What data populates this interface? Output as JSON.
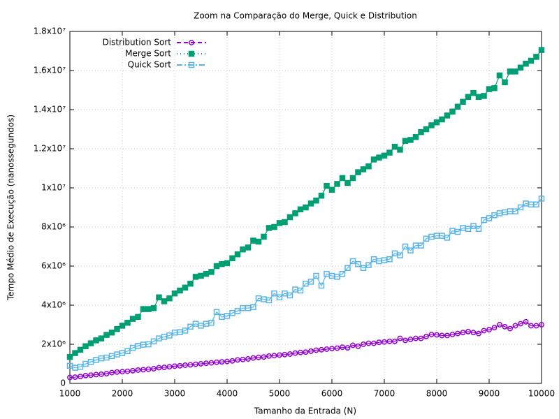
{
  "chart_data": {
    "type": "line",
    "title": "Zoom na Comparação do Merge, Quick e Distribution",
    "xlabel": "Tamanho da Entrada (N)",
    "ylabel": "Tempo Médio de Execução (nanossegundos)",
    "x": [
      1000,
      1100,
      1200,
      1300,
      1400,
      1500,
      1600,
      1700,
      1800,
      1900,
      2000,
      2100,
      2200,
      2300,
      2400,
      2500,
      2600,
      2700,
      2800,
      2900,
      3000,
      3100,
      3200,
      3300,
      3400,
      3500,
      3600,
      3700,
      3800,
      3900,
      4000,
      4100,
      4200,
      4300,
      4400,
      4500,
      4600,
      4700,
      4800,
      4900,
      5000,
      5100,
      5200,
      5300,
      5400,
      5500,
      5600,
      5700,
      5800,
      5900,
      6000,
      6100,
      6200,
      6300,
      6400,
      6500,
      6600,
      6700,
      6800,
      6900,
      7000,
      7100,
      7200,
      7300,
      7400,
      7500,
      7600,
      7700,
      7800,
      7900,
      8000,
      8100,
      8200,
      8300,
      8400,
      8500,
      8600,
      8700,
      8800,
      8900,
      9000,
      9100,
      9200,
      9300,
      9400,
      9500,
      9600,
      9700,
      9800,
      9900,
      10000
    ],
    "series": [
      {
        "name": "Distribution Sort",
        "color": "#9400d3",
        "marker": "circle",
        "dash": "6 4",
        "values": [
          300000.0,
          320000.0,
          350000.0,
          400000.0,
          420000.0,
          450000.0,
          470000.0,
          500000.0,
          550000.0,
          580000.0,
          600000.0,
          620000.0,
          650000.0,
          680000.0,
          700000.0,
          720000.0,
          750000.0,
          800000.0,
          820000.0,
          850000.0,
          880000.0,
          900000.0,
          930000.0,
          950000.0,
          980000.0,
          1000000.0,
          1030000.0,
          1050000.0,
          1080000.0,
          1100000.0,
          1120000.0,
          1150000.0,
          1200000.0,
          1220000.0,
          1250000.0,
          1300000.0,
          1330000.0,
          1350000.0,
          1400000.0,
          1420000.0,
          1450000.0,
          1470000.0,
          1500000.0,
          1550000.0,
          1580000.0,
          1600000.0,
          1650000.0,
          1700000.0,
          1720000.0,
          1750000.0,
          1780000.0,
          1800000.0,
          1850000.0,
          1820000.0,
          1950000.0,
          1900000.0,
          2000000.0,
          2050000.0,
          2050000.0,
          2100000.0,
          2120000.0,
          2150000.0,
          2150000.0,
          2300000.0,
          2200000.0,
          2250000.0,
          2300000.0,
          2300000.0,
          2400000.0,
          2500000.0,
          2480000.0,
          2450000.0,
          2450000.0,
          2500000.0,
          2550000.0,
          2600000.0,
          2650000.0,
          2600000.0,
          2550000.0,
          2700000.0,
          2750000.0,
          2850000.0,
          3000000.0,
          2900000.0,
          2800000.0,
          2950000.0,
          3050000.0,
          3150000.0,
          2950000.0,
          2950000.0,
          3000000.0
        ]
      },
      {
        "name": "Merge Sort",
        "color": "#009e73",
        "marker": "filled-square",
        "dash": "1 4",
        "values": [
          1350000.0,
          1550000.0,
          1720000.0,
          1900000.0,
          2050000.0,
          2200000.0,
          2300000.0,
          2480000.0,
          2600000.0,
          2780000.0,
          2950000.0,
          3100000.0,
          3300000.0,
          3400000.0,
          3800000.0,
          3800000.0,
          3850000.0,
          4400000.0,
          4200000.0,
          4350000.0,
          4600000.0,
          4750000.0,
          4900000.0,
          5100000.0,
          5450000.0,
          5500000.0,
          5600000.0,
          5700000.0,
          6000000.0,
          6100000.0,
          6150000.0,
          6400000.0,
          6600000.0,
          6850000.0,
          6950000.0,
          7300000.0,
          7250000.0,
          7500000.0,
          7950000.0,
          8000000.0,
          8200000.0,
          8250000.0,
          8500000.0,
          8700000.0,
          8900000.0,
          9000000.0,
          9200000.0,
          9350000.0,
          9600000.0,
          10100000.0,
          9900000.0,
          10200000.0,
          10500000.0,
          10250000.0,
          10500000.0,
          10800000.0,
          10950000.0,
          11100000.0,
          11450000.0,
          11550000.0,
          11650000.0,
          11800000.0,
          12100000.0,
          11950000.0,
          12400000.0,
          12450000.0,
          12600000.0,
          12850000.0,
          13000000.0,
          13200000.0,
          13350000.0,
          13500000.0,
          13700000.0,
          13900000.0,
          14150000.0,
          14400000.0,
          14650000.0,
          14850000.0,
          14650000.0,
          14700000.0,
          15050000.0,
          15100000.0,
          15750000.0,
          15400000.0,
          15950000.0,
          15950000.0,
          16150000.0,
          16350000.0,
          16500000.0,
          16700000.0,
          17050000.0
        ]
      },
      {
        "name": "Quick Sort",
        "color": "#56b4e9",
        "marker": "square",
        "dash": "8 3 2 3",
        "values": [
          900000.0,
          800000.0,
          850000.0,
          1000000.0,
          1100000.0,
          1200000.0,
          1280000.0,
          1320000.0,
          1400000.0,
          1480000.0,
          1550000.0,
          1650000.0,
          1820000.0,
          1920000.0,
          1980000.0,
          2000000.0,
          2150000.0,
          2300000.0,
          2380000.0,
          2450000.0,
          2600000.0,
          2620000.0,
          2700000.0,
          2900000.0,
          3050000.0,
          2950000.0,
          3050000.0,
          3100000.0,
          3650000.0,
          3400000.0,
          3450000.0,
          3600000.0,
          3700000.0,
          3850000.0,
          3850000.0,
          3900000.0,
          4350000.0,
          4300000.0,
          4250000.0,
          4600000.0,
          4400000.0,
          4600000.0,
          4500000.0,
          4800000.0,
          4750000.0,
          5100000.0,
          5200000.0,
          5500000.0,
          5000000.0,
          5600000.0,
          5500000.0,
          5450000.0,
          5600000.0,
          5900000.0,
          6250000.0,
          6100000.0,
          5900000.0,
          6050000.0,
          6350000.0,
          6250000.0,
          6300000.0,
          6350000.0,
          6650000.0,
          6550000.0,
          7000000.0,
          6800000.0,
          7050000.0,
          7050000.0,
          7400000.0,
          7500000.0,
          7550000.0,
          7550000.0,
          7450000.0,
          7800000.0,
          7750000.0,
          7950000.0,
          7900000.0,
          8050000.0,
          7900000.0,
          8350000.0,
          8450000.0,
          8600000.0,
          8700000.0,
          8750000.0,
          8800000.0,
          8800000.0,
          9000000.0,
          9200000.0,
          9150000.0,
          9150000.0,
          9450000.0
        ]
      }
    ],
    "xlim": [
      1000,
      10000
    ],
    "xticks": [
      1000,
      2000,
      3000,
      4000,
      5000,
      6000,
      7000,
      8000,
      9000,
      10000
    ],
    "ylim": [
      0,
      18000000
    ],
    "yticks": [
      0,
      {
        "value": 2000000,
        "label": "2x10⁶"
      },
      {
        "value": 4000000,
        "label": "4x10⁶"
      },
      {
        "value": 6000000,
        "label": "6x10⁶"
      },
      {
        "value": 8000000,
        "label": "8x10⁶"
      },
      {
        "value": 10000000,
        "label": "1x10⁷"
      },
      {
        "value": 12000000,
        "label": "1.2x10⁷"
      },
      {
        "value": 14000000,
        "label": "1.4x10⁷"
      },
      {
        "value": 16000000,
        "label": "1.6x10⁷"
      },
      {
        "value": 18000000,
        "label": "1.8x10⁷"
      }
    ],
    "grid": true,
    "legend": "top-left"
  }
}
